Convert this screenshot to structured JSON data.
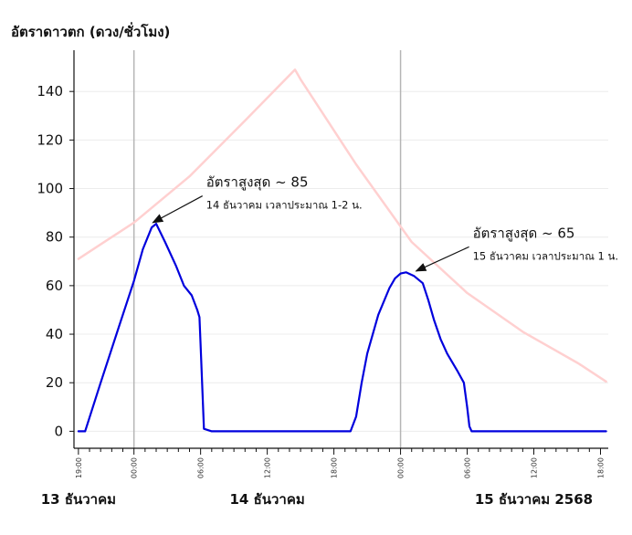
{
  "chart_data": {
    "type": "line",
    "ylabel": "อัตราดาวตก (ดวง/ชั่วโมง)",
    "ylim": [
      -7,
      157
    ],
    "yticks": [
      0,
      20,
      40,
      60,
      80,
      100,
      120,
      140
    ],
    "xlim": [
      -0.4,
      47.7
    ],
    "xticks": [
      {
        "x": 0,
        "label": "19:00"
      },
      {
        "x": 5,
        "label": "00:00"
      },
      {
        "x": 11,
        "label": "06:00"
      },
      {
        "x": 17,
        "label": "12:00"
      },
      {
        "x": 23,
        "label": "18:00"
      },
      {
        "x": 29,
        "label": "00:00"
      },
      {
        "x": 35,
        "label": "06:00"
      },
      {
        "x": 41,
        "label": "12:00"
      },
      {
        "x": 47,
        "label": "18:00"
      }
    ],
    "minor_tick_step": 1,
    "grid": "horizontal",
    "midnight_lines": [
      5,
      29
    ],
    "date_labels": [
      {
        "x": 0,
        "label": "13 ธันวาคม"
      },
      {
        "x": 17,
        "label": "14 ธันวาคม"
      },
      {
        "x": 41,
        "label": "15 ธันวาคม 2568"
      }
    ],
    "series": [
      {
        "color": "#ffd0d0",
        "x": [
          0,
          5,
          10,
          15,
          19.5,
          20,
          25,
          30,
          35,
          40,
          45,
          47.5
        ],
        "values": [
          71,
          86,
          105,
          128,
          149,
          145,
          110,
          78,
          57,
          41,
          28,
          20.5
        ]
      },
      {
        "color": "#0000dd",
        "x": [
          0,
          0.6,
          2,
          3.5,
          4.5,
          5,
          5.8,
          6.6,
          7,
          7.8,
          8.8,
          9.5,
          10.2,
          10.7,
          10.9,
          11,
          11.3,
          12,
          20,
          24.5,
          25,
          25.5,
          26,
          27,
          28,
          28.5,
          29,
          29.5,
          30.2,
          31,
          31.5,
          32,
          32.6,
          33.2,
          34.1,
          34.7,
          35,
          35.2,
          35.4,
          36,
          47.5
        ],
        "values": [
          0,
          0,
          20,
          41,
          55,
          62,
          75,
          84,
          85.5,
          78,
          68,
          60,
          56,
          50,
          47,
          36,
          1,
          0,
          0,
          0,
          6,
          20,
          32,
          48,
          59,
          63,
          65,
          65.5,
          64,
          61,
          54,
          46,
          38,
          32,
          25,
          20,
          10,
          2,
          0,
          0,
          0
        ]
      }
    ],
    "annotations": [
      {
        "title": "อัตราสูงสุด ~ 85",
        "subtitle": "14 ธันวาคม เวลาประมาณ 1-2 น.",
        "point_x": 6.7,
        "point_y": 86,
        "text_x": 11.5,
        "text_y": 100
      },
      {
        "title": "อัตราสูงสุด ~ 65",
        "subtitle": "15 ธันวาคม เวลาประมาณ 1 น.",
        "point_x": 30.4,
        "point_y": 66,
        "text_x": 35.5,
        "text_y": 79
      }
    ]
  }
}
